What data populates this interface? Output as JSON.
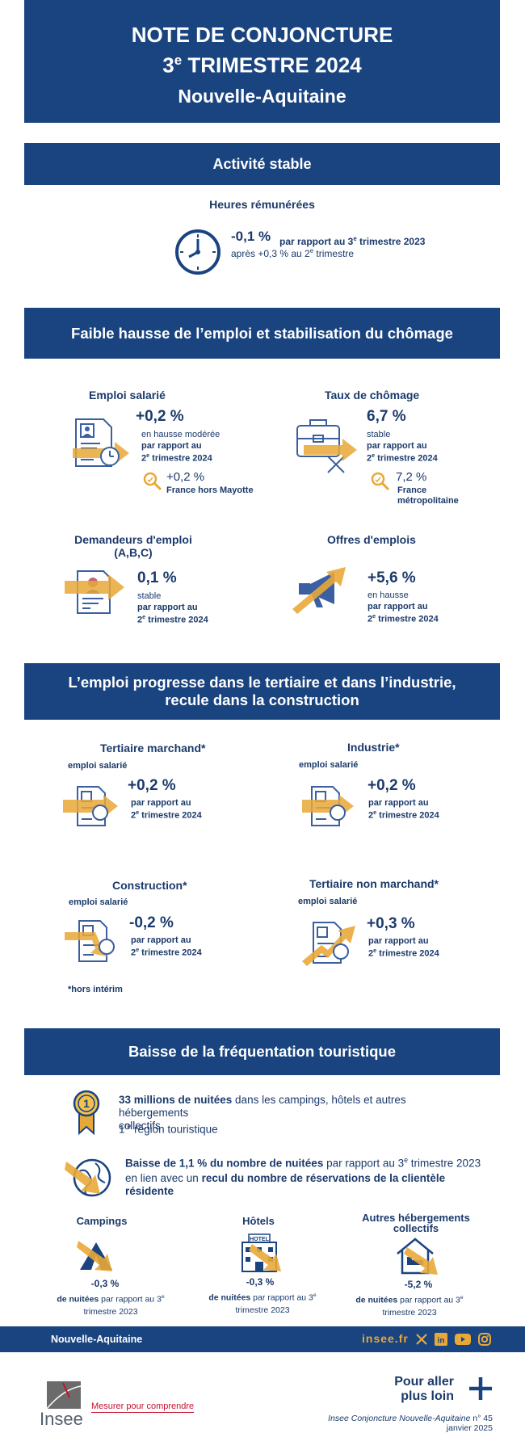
{
  "colors": {
    "navy": "#1a4480",
    "gold": "#e8a838",
    "text": "#1b3a6b"
  },
  "header": {
    "line1": "NOTE DE CONJONCTURE",
    "line2_num": "3",
    "line2_sup": "e",
    "line2_rest": " TRIMESTRE 2024",
    "region": "Nouvelle-Aquitaine"
  },
  "activity": {
    "band": "Activité stable",
    "subtitle": "Heures rémunérées",
    "value": "-0,1 %",
    "compare_pre": "par rapport au 3",
    "compare_sup": "e",
    "compare_post": " trimestre 2023",
    "after_pre": "après +0,3 % au 2",
    "after_sup": "e",
    "after_post": " trimestre",
    "icon": "clock-icon"
  },
  "employment": {
    "band": "Faible hausse de l’emploi et stabilisation du chômage",
    "salaried": {
      "title": "Emploi salarié",
      "value": "+0,2 %",
      "desc": "en hausse modérée",
      "cmp1": "par rapport au",
      "cmp2_num": "2",
      "cmp2_sup": "e",
      "cmp2_rest": " trimestre 2024",
      "fr_value": "+0,2 %",
      "fr_label": "France hors Mayotte"
    },
    "unemployment": {
      "title": "Taux de chômage",
      "value": "6,7 %",
      "desc": "stable",
      "cmp1": "par rapport au",
      "cmp2_num": "2",
      "cmp2_sup": "e",
      "cmp2_rest": " trimestre 2024",
      "fr_value": "7,2 %",
      "fr_label1": "France",
      "fr_label2": "métropolitaine"
    },
    "jobseekers": {
      "title1": "Demandeurs d'emploi",
      "title2": "(A,B,C)",
      "value": "0,1 %",
      "desc": "stable",
      "cmp1": "par rapport au",
      "cmp2_num": "2",
      "cmp2_sup": "e",
      "cmp2_rest": " trimestre 2024"
    },
    "offers": {
      "title": "Offres d'emplois",
      "value": "+5,6 %",
      "desc": "en hausse",
      "cmp1": "par rapport au",
      "cmp2_num": "2",
      "cmp2_sup": "e",
      "cmp2_rest": "  trimestre 2024"
    }
  },
  "sectors": {
    "band1": "L’emploi progresse dans le tertiaire et dans l’industrie,",
    "band2": "recule dans la construction",
    "sub": "emploi salarié",
    "items": [
      {
        "title": "Tertiaire marchand*",
        "value": "+0,2 %",
        "cmp1": "par rapport au",
        "cmp2_num": "2",
        "cmp2_sup": "e",
        "cmp2_rest": "  trimestre 2024"
      },
      {
        "title": "Industrie*",
        "value": "+0,2 %",
        "cmp1": "par rapport au",
        "cmp2_num": "2",
        "cmp2_sup": "e",
        "cmp2_rest": "  trimestre 2024"
      },
      {
        "title": "Construction*",
        "value": "-0,2 %",
        "cmp1": "par rapport au",
        "cmp2_num": "2",
        "cmp2_sup": "e",
        "cmp2_rest": "  trimestre 2024"
      },
      {
        "title": "Tertiaire non marchand*",
        "value": "+0,3 %",
        "cmp1": "par rapport au",
        "cmp2_num": "2",
        "cmp2_sup": "e",
        "cmp2_rest": "  trimestre 2024"
      }
    ],
    "note": "*hors intérim"
  },
  "tourism": {
    "band": "Baisse de la fréquentation touristique",
    "nights_bold": "33 millions de nuitées",
    "nights_rest1": "  dans les campings, hôtels et autres hébergements",
    "nights_rest2": "collectifs",
    "rank_num": "1",
    "rank_sup": "re",
    "rank_rest": " région touristique",
    "drop_bold": "Baisse de 1,1 % du nombre de nuitées",
    "drop_rest_pre": " par rapport au 3",
    "drop_rest_sup": "e",
    "drop_rest_post": " trimestre 2023",
    "link_pre": "en lien avec un ",
    "link_bold1": "recul du nombre de réservations de la clientèle",
    "link_bold2": "résidente",
    "hotel_sign": "HOTEL",
    "types": [
      {
        "title1": "Campings",
        "title2": "",
        "value": "-0,3 %",
        "cmp_bold": "de nuitées",
        "cmp_rest": " par rapport au 3",
        "cmp_sup": "e",
        "cmp_line2": "trimestre 2023"
      },
      {
        "title1": "Hôtels",
        "title2": "",
        "value": "-0,3 %",
        "cmp_bold": "de nuitées",
        "cmp_rest": " par rapport au 3",
        "cmp_sup": "e",
        "cmp_line2": "trimestre 2023"
      },
      {
        "title1": "Autres hébergements",
        "title2": "collectifs",
        "value": "-5,2 %",
        "cmp_bold": "de nuitées",
        "cmp_rest": " par rapport au 3",
        "cmp_sup": "e",
        "cmp_line2": "trimestre 2023"
      }
    ]
  },
  "footer": {
    "region": "Nouvelle-Aquitaine",
    "site": "insee.fr",
    "social": [
      "x-icon",
      "linkedin-icon",
      "youtube-icon",
      "instagram-icon"
    ],
    "logo_text": "Insee",
    "tagline": "Mesurer pour comprendre",
    "more1": "Pour aller",
    "more2": "plus loin",
    "pub_italic": "Insee Conjoncture Nouvelle-Aquitaine",
    "pub_num": " n° 45",
    "pub_date": "janvier 2025"
  }
}
